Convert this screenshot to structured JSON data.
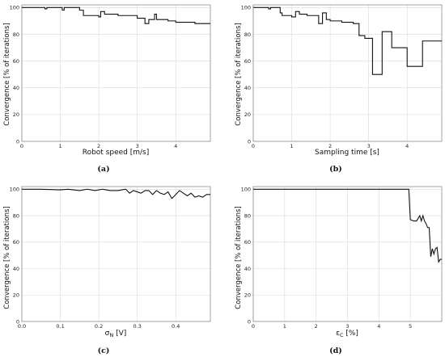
{
  "chart_data": [
    {
      "type": "line",
      "caption": "(a)",
      "xlabel": "Robot speed [m/s]",
      "ylabel": "Convergence [% of iterations]",
      "xlim": [
        0,
        4.9
      ],
      "ylim": [
        0,
        102
      ],
      "xticks": [
        "0",
        "1",
        "2",
        "3",
        "4"
      ],
      "yticks": [
        "0",
        "20",
        "40",
        "60",
        "80",
        "100"
      ],
      "grid": true,
      "step": true,
      "x": [
        0,
        0.6,
        0.65,
        0.75,
        1.05,
        1.1,
        1.15,
        1.5,
        1.6,
        2.0,
        2.05,
        2.15,
        2.5,
        3.0,
        3.2,
        3.3,
        3.45,
        3.5,
        3.6,
        3.8,
        4.0,
        4.3,
        4.5,
        4.9
      ],
      "y": [
        100,
        99,
        100,
        100,
        98,
        100,
        100,
        98,
        94,
        93,
        97,
        95,
        94,
        92,
        88,
        91,
        95,
        91,
        91,
        90,
        89,
        89,
        88,
        88
      ]
    },
    {
      "type": "line",
      "caption": "(b)",
      "xlabel": "Sampling time [s]",
      "ylabel": "Convergence [% of iterations]",
      "xlim": [
        0,
        4.9
      ],
      "ylim": [
        0,
        102
      ],
      "xticks": [
        "0",
        "1",
        "2",
        "3",
        "4"
      ],
      "yticks": [
        "0",
        "20",
        "40",
        "60",
        "80",
        "100"
      ],
      "grid": true,
      "step": true,
      "x": [
        0,
        0.4,
        0.45,
        0.7,
        0.75,
        1.0,
        1.1,
        1.2,
        1.4,
        1.5,
        1.7,
        1.8,
        1.9,
        2.0,
        2.3,
        2.6,
        2.75,
        2.9,
        3.1,
        3.35,
        3.6,
        4.0,
        4.4,
        4.9
      ],
      "y": [
        100,
        99,
        100,
        96,
        94,
        93,
        97,
        95,
        94,
        94,
        88,
        96,
        91,
        90,
        89,
        88,
        79,
        77,
        50,
        82,
        70,
        56,
        75,
        75
      ]
    },
    {
      "type": "line",
      "caption": "(c)",
      "xlabel": "σ_N [V]",
      "ylabel": "Convergence [% of iterations]",
      "xlim": [
        0,
        0.49
      ],
      "ylim": [
        0,
        102
      ],
      "xticks": [
        "0.0",
        "0.1",
        "0.2",
        "0.3",
        "0.4"
      ],
      "yticks": [
        "0",
        "20",
        "40",
        "60",
        "80",
        "100"
      ],
      "grid": true,
      "step": false,
      "x": [
        0.0,
        0.05,
        0.1,
        0.12,
        0.15,
        0.17,
        0.19,
        0.21,
        0.23,
        0.25,
        0.27,
        0.28,
        0.29,
        0.3,
        0.31,
        0.32,
        0.33,
        0.34,
        0.35,
        0.36,
        0.37,
        0.38,
        0.39,
        0.4,
        0.41,
        0.42,
        0.43,
        0.44,
        0.45,
        0.46,
        0.47,
        0.48,
        0.49
      ],
      "y": [
        100,
        100,
        99.5,
        100,
        99,
        100,
        99,
        100,
        99,
        99,
        100,
        97,
        99,
        98,
        97,
        99,
        99,
        96,
        99,
        97,
        96,
        98,
        93,
        96,
        99,
        97,
        95,
        97,
        94,
        95,
        94,
        96,
        96
      ]
    },
    {
      "type": "line",
      "caption": "(d)",
      "xlabel": "ε_C [%]",
      "ylabel": "Convergence [% of iterations]",
      "xlim": [
        0,
        6
      ],
      "ylim": [
        0,
        102
      ],
      "xticks": [
        "0",
        "1",
        "2",
        "3",
        "4",
        "5"
      ],
      "yticks": [
        "0",
        "20",
        "40",
        "60",
        "80",
        "100"
      ],
      "grid": true,
      "step": false,
      "x": [
        0,
        4.95,
        5.0,
        5.1,
        5.2,
        5.3,
        5.35,
        5.4,
        5.45,
        5.5,
        5.55,
        5.6,
        5.65,
        5.7,
        5.75,
        5.8,
        5.85,
        5.9,
        5.95,
        6.0
      ],
      "y": [
        100,
        100,
        77,
        76,
        76,
        80,
        76,
        80,
        76,
        74,
        71,
        71,
        49,
        55,
        51,
        55,
        56,
        45,
        47,
        47
      ]
    }
  ]
}
